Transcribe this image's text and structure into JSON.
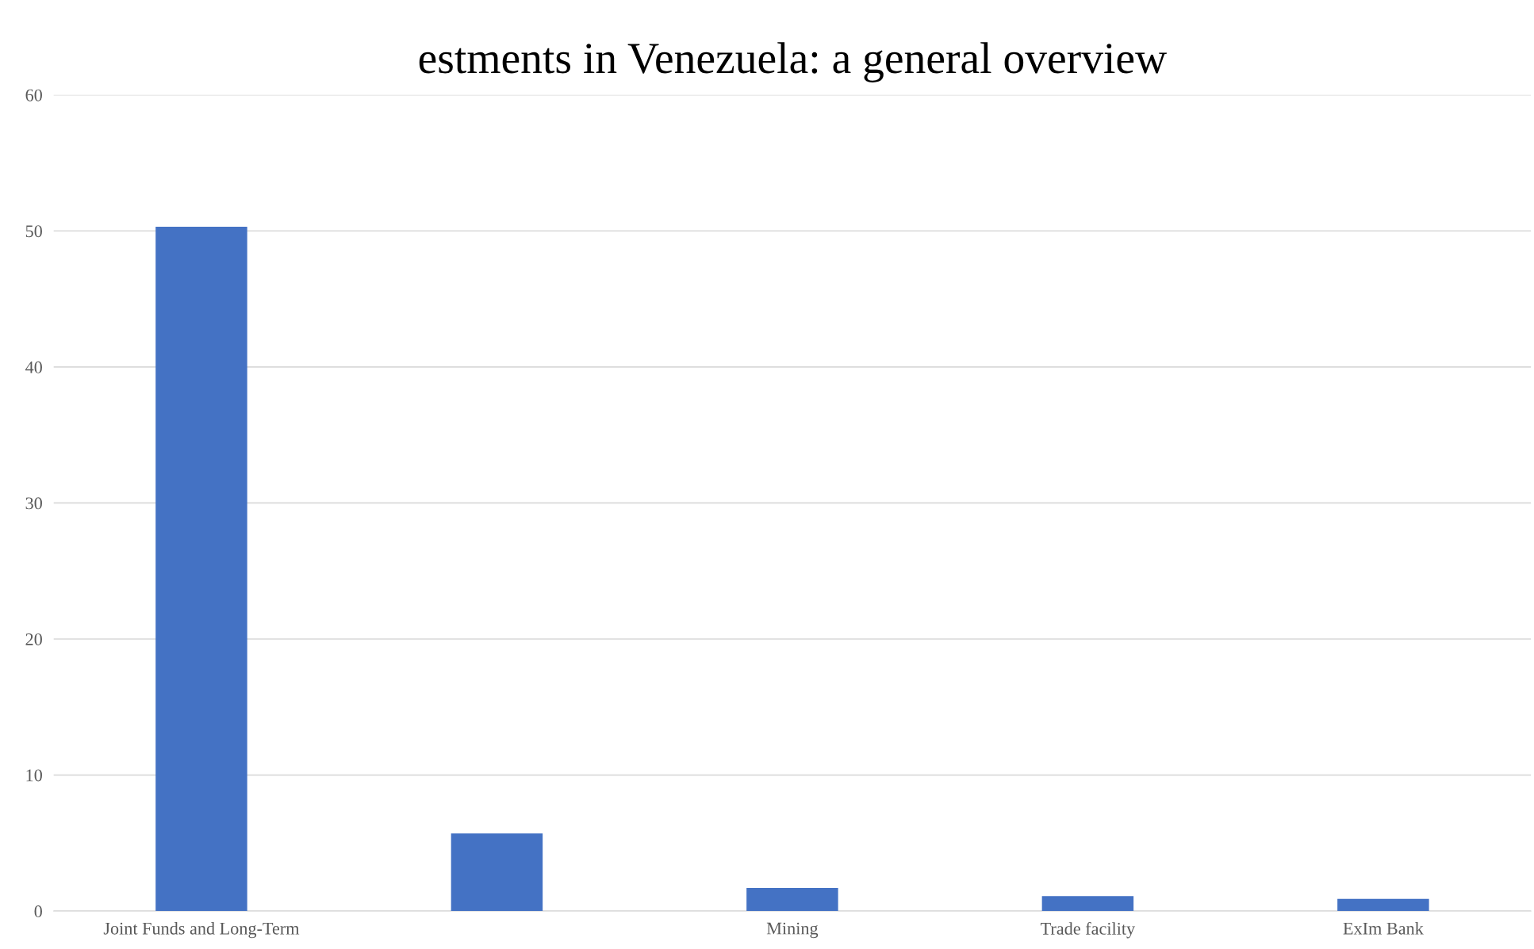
{
  "chart_data": {
    "type": "bar",
    "title": "estments in Venezuela: a general overview",
    "categories": [
      "Joint Funds and Long-Term",
      null,
      "Mining",
      "Trade facility",
      "ExIm Bank"
    ],
    "values": [
      50.3,
      5.7,
      1.7,
      1.1,
      0.9
    ],
    "color": "#4472c4",
    "ylim": [
      0,
      60
    ],
    "yticks": [
      0,
      10,
      20,
      30,
      40,
      50,
      60
    ],
    "grid": "y"
  }
}
